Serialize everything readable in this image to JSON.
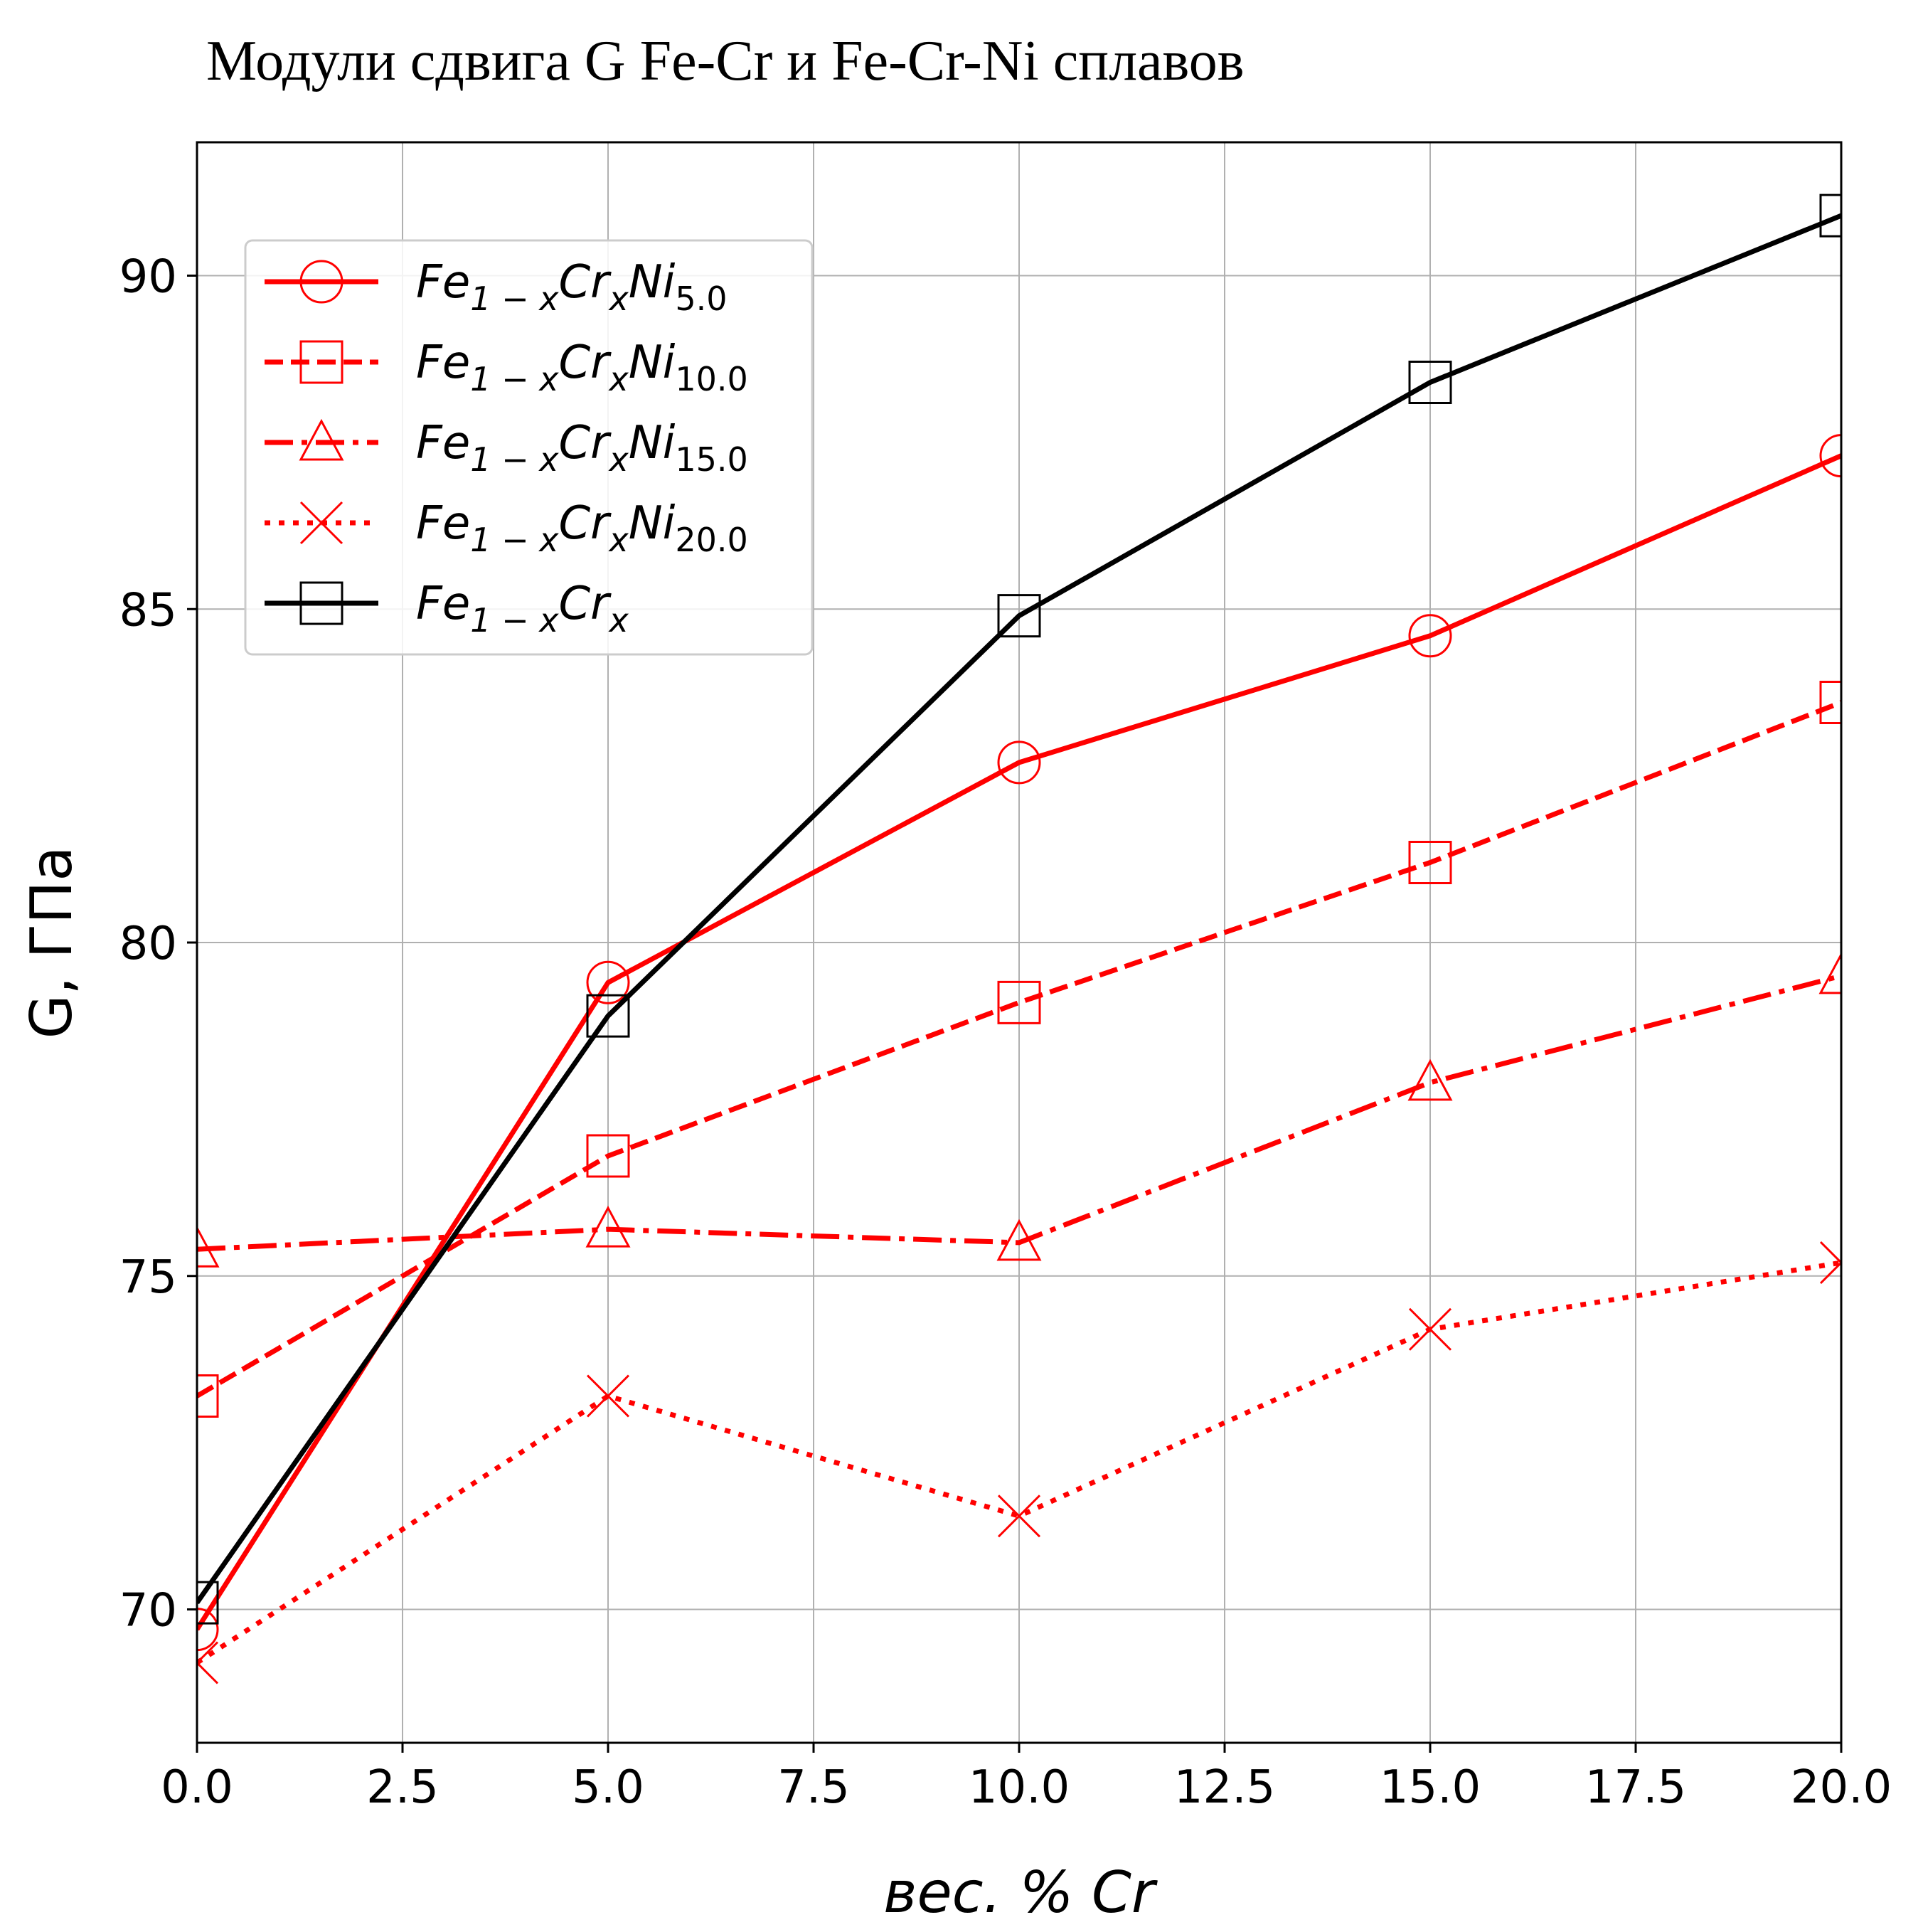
{
  "chart_data": {
    "type": "line",
    "title": "Модули сдвига G Fe-Cr и Fe-Cr-Ni сплавов",
    "xlabel": "вес. % Cr",
    "ylabel": "G, ГПа",
    "xlim": [
      0,
      20
    ],
    "ylim": [
      68,
      92
    ],
    "xticks": [
      "0.0",
      "2.5",
      "5.0",
      "7.5",
      "10.0",
      "12.5",
      "15.0",
      "17.5",
      "20.0"
    ],
    "yticks": [
      "70",
      "75",
      "80",
      "85",
      "90"
    ],
    "grid": true,
    "legend_position": "top-left",
    "x": [
      0,
      5,
      10,
      15,
      20
    ],
    "series": [
      {
        "name": "Fe1-xCrxNi5.0",
        "legend": {
          "base": "Fe",
          "sub1": "1 − x",
          "mid": "Cr",
          "sub2": "x",
          "tail": "Ni",
          "sub3": "5.0"
        },
        "color": "#ff0000",
        "style": "solid",
        "marker": "circle",
        "values": [
          69.7,
          79.4,
          82.7,
          84.6,
          87.3
        ]
      },
      {
        "name": "Fe1-xCrxNi10.0",
        "legend": {
          "base": "Fe",
          "sub1": "1 − x",
          "mid": "Cr",
          "sub2": "x",
          "tail": "Ni",
          "sub3": "10.0"
        },
        "color": "#ff0000",
        "style": "dashed",
        "marker": "square",
        "values": [
          73.2,
          76.8,
          79.1,
          81.2,
          83.6
        ]
      },
      {
        "name": "Fe1-xCrxNi15.0",
        "legend": {
          "base": "Fe",
          "sub1": "1 − x",
          "mid": "Cr",
          "sub2": "x",
          "tail": "Ni",
          "sub3": "15.0"
        },
        "color": "#ff0000",
        "style": "dashdot",
        "marker": "triangle",
        "values": [
          75.4,
          75.7,
          75.5,
          77.9,
          79.5
        ]
      },
      {
        "name": "Fe1-xCrxNi20.0",
        "legend": {
          "base": "Fe",
          "sub1": "1 − x",
          "mid": "Cr",
          "sub2": "x",
          "tail": "Ni",
          "sub3": "20.0"
        },
        "color": "#ff0000",
        "style": "dotted",
        "marker": "x",
        "values": [
          69.2,
          73.2,
          71.4,
          74.2,
          75.2
        ]
      },
      {
        "name": "Fe1-xCrx",
        "legend": {
          "base": "Fe",
          "sub1": "1 − x",
          "mid": "Cr",
          "sub2": "x",
          "tail": "",
          "sub3": ""
        },
        "color": "#000000",
        "style": "solid",
        "marker": "square",
        "values": [
          70.1,
          78.9,
          84.9,
          88.4,
          90.9
        ]
      }
    ]
  }
}
